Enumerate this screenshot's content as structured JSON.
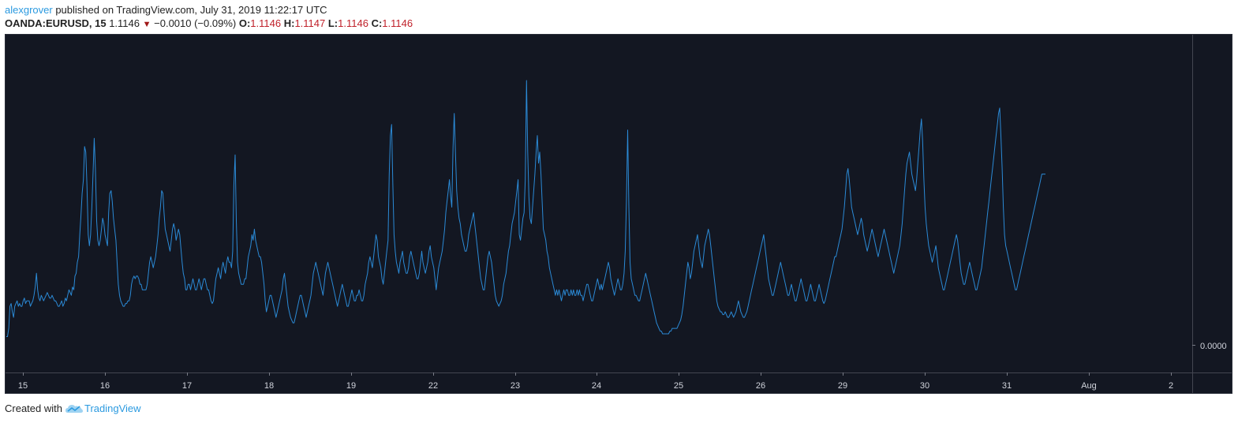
{
  "header": {
    "author": "alexgrover",
    "published_text": "published on TradingView.com, July 31, 2019 11:22:17 UTC",
    "symbol": "OANDA:EURUSD, 15",
    "last_price": "1.1146",
    "change": "−0.0010 (−0.09%)",
    "o_label": "O:",
    "o_value": "1.1146",
    "h_label": "H:",
    "h_value": "1.1147",
    "l_label": "L:",
    "l_value": "1.1146",
    "c_label": "C:",
    "c_value": "1.1146",
    "down_arrow_icon": "triangle-down-icon"
  },
  "footer": {
    "created_with": "Created with",
    "brand": "TradingView",
    "logo_icon": "tradingview-cloud-icon"
  },
  "colors": {
    "background": "#131722",
    "line": "#2b8ad6",
    "author": "#2b9ae0",
    "ohlc_value": "#c0212a"
  },
  "chart_data": {
    "type": "line",
    "price_scale_label": "0.0000",
    "x_ticks": [
      "15",
      "16",
      "17",
      "18",
      "19",
      "22",
      "23",
      "24",
      "25",
      "26",
      "29",
      "30",
      "31",
      "Aug",
      "2"
    ],
    "ylim": [
      0,
      100
    ],
    "series": [
      {
        "values": [
          3,
          3,
          6,
          14,
          15,
          12,
          10,
          14,
          15,
          16,
          14,
          15,
          14,
          14,
          16,
          17,
          15,
          16,
          16,
          16,
          14,
          15,
          16,
          18,
          21,
          26,
          20,
          17,
          16,
          18,
          17,
          16,
          17,
          18,
          19,
          18,
          17,
          17,
          18,
          17,
          16,
          16,
          15,
          14,
          14,
          15,
          16,
          14,
          15,
          17,
          16,
          18,
          20,
          19,
          18,
          21,
          20,
          25,
          26,
          30,
          32,
          40,
          47,
          55,
          60,
          72,
          70,
          58,
          40,
          36,
          40,
          50,
          62,
          75,
          64,
          45,
          38,
          36,
          38,
          42,
          46,
          44,
          40,
          38,
          36,
          48,
          55,
          56,
          52,
          46,
          42,
          38,
          30,
          22,
          18,
          16,
          15,
          14,
          14,
          15,
          15,
          16,
          16,
          18,
          22,
          24,
          25,
          24,
          25,
          25,
          24,
          22,
          22,
          20,
          20,
          20,
          20,
          22,
          26,
          30,
          32,
          30,
          28,
          30,
          32,
          36,
          40,
          46,
          50,
          56,
          55,
          48,
          42,
          40,
          38,
          36,
          34,
          38,
          42,
          44,
          42,
          38,
          40,
          42,
          40,
          35,
          30,
          26,
          24,
          20,
          20,
          22,
          22,
          20,
          22,
          24,
          22,
          20,
          20,
          22,
          24,
          22,
          20,
          22,
          24,
          24,
          22,
          20,
          20,
          18,
          16,
          15,
          16,
          20,
          24,
          26,
          28,
          26,
          24,
          28,
          30,
          28,
          26,
          30,
          32,
          30,
          30,
          28,
          34,
          58,
          69,
          45,
          30,
          26,
          24,
          22,
          22,
          22,
          24,
          24,
          28,
          32,
          34,
          36,
          40,
          38,
          42,
          38,
          36,
          34,
          32,
          32,
          30,
          26,
          22,
          16,
          12,
          14,
          16,
          18,
          18,
          16,
          14,
          12,
          10,
          12,
          14,
          16,
          18,
          20,
          24,
          26,
          22,
          18,
          14,
          12,
          10,
          9,
          8,
          8,
          10,
          12,
          14,
          16,
          18,
          18,
          16,
          14,
          12,
          10,
          12,
          14,
          16,
          18,
          22,
          26,
          28,
          30,
          28,
          26,
          24,
          22,
          20,
          18,
          22,
          26,
          28,
          30,
          28,
          26,
          24,
          22,
          20,
          18,
          16,
          14,
          16,
          18,
          20,
          22,
          20,
          18,
          16,
          14,
          14,
          16,
          18,
          20,
          18,
          16,
          16,
          18,
          18,
          20,
          18,
          16,
          16,
          18,
          22,
          24,
          26,
          30,
          32,
          30,
          28,
          32,
          36,
          40,
          38,
          32,
          30,
          28,
          24,
          22,
          26,
          30,
          34,
          38,
          62,
          76,
          80,
          58,
          40,
          34,
          30,
          28,
          26,
          30,
          32,
          34,
          30,
          28,
          26,
          26,
          28,
          32,
          34,
          32,
          30,
          28,
          26,
          24,
          24,
          26,
          30,
          34,
          30,
          28,
          26,
          28,
          30,
          34,
          36,
          32,
          30,
          28,
          24,
          20,
          24,
          28,
          30,
          32,
          34,
          38,
          42,
          48,
          52,
          56,
          60,
          54,
          50,
          72,
          84,
          70,
          56,
          50,
          46,
          44,
          40,
          38,
          36,
          34,
          34,
          36,
          40,
          42,
          44,
          46,
          48,
          44,
          40,
          36,
          32,
          28,
          24,
          22,
          20,
          20,
          24,
          28,
          32,
          34,
          32,
          30,
          26,
          22,
          18,
          16,
          15,
          14,
          15,
          16,
          18,
          22,
          24,
          26,
          30,
          34,
          36,
          40,
          44,
          46,
          48,
          52,
          56,
          60,
          40,
          38,
          42,
          46,
          48,
          60,
          96,
          70,
          54,
          46,
          44,
          50,
          56,
          62,
          70,
          76,
          66,
          70,
          62,
          52,
          42,
          40,
          38,
          34,
          32,
          28,
          26,
          24,
          22,
          20,
          18,
          20,
          18,
          20,
          18,
          16,
          18,
          20,
          18,
          20,
          20,
          18,
          18,
          20,
          18,
          20,
          18,
          18,
          20,
          18,
          20,
          18,
          18,
          16,
          18,
          20,
          22,
          22,
          20,
          18,
          16,
          16,
          18,
          20,
          22,
          24,
          22,
          20,
          22,
          20,
          22,
          24,
          26,
          28,
          30,
          28,
          24,
          22,
          20,
          18,
          20,
          22,
          24,
          22,
          20,
          20,
          22,
          26,
          34,
          52,
          78,
          50,
          30,
          24,
          22,
          20,
          18,
          18,
          17,
          16,
          16,
          18,
          20,
          22,
          24,
          26,
          24,
          22,
          20,
          18,
          16,
          14,
          12,
          10,
          8,
          7,
          6,
          5,
          5,
          4,
          4,
          4,
          4,
          4,
          4,
          5,
          5,
          6,
          6,
          6,
          6,
          6,
          7,
          8,
          9,
          11,
          14,
          18,
          22,
          26,
          30,
          28,
          24,
          26,
          30,
          34,
          36,
          38,
          40,
          36,
          32,
          30,
          28,
          32,
          36,
          38,
          40,
          42,
          40,
          36,
          32,
          28,
          24,
          20,
          16,
          14,
          13,
          12,
          12,
          11,
          11,
          12,
          11,
          10,
          10,
          11,
          12,
          11,
          10,
          11,
          12,
          14,
          16,
          14,
          12,
          11,
          10,
          10,
          11,
          12,
          14,
          16,
          18,
          20,
          22,
          24,
          26,
          28,
          30,
          32,
          34,
          36,
          38,
          40,
          36,
          32,
          28,
          24,
          22,
          20,
          18,
          18,
          20,
          22,
          24,
          26,
          28,
          30,
          28,
          26,
          24,
          22,
          20,
          18,
          18,
          20,
          22,
          20,
          18,
          16,
          16,
          18,
          20,
          22,
          24,
          22,
          20,
          18,
          16,
          16,
          18,
          20,
          22,
          20,
          18,
          16,
          16,
          18,
          20,
          22,
          20,
          18,
          16,
          15,
          16,
          18,
          20,
          22,
          24,
          26,
          28,
          30,
          32,
          32,
          34,
          36,
          38,
          40,
          42,
          46,
          50,
          56,
          62,
          64,
          60,
          55,
          50,
          48,
          46,
          44,
          42,
          40,
          42,
          44,
          46,
          44,
          40,
          38,
          36,
          34,
          36,
          38,
          40,
          42,
          40,
          38,
          36,
          34,
          32,
          34,
          36,
          38,
          40,
          42,
          40,
          38,
          36,
          34,
          32,
          30,
          28,
          26,
          28,
          30,
          32,
          34,
          36,
          40,
          44,
          50,
          56,
          62,
          66,
          68,
          70,
          66,
          62,
          60,
          58,
          56,
          60,
          66,
          72,
          78,
          82,
          74,
          60,
          50,
          44,
          40,
          36,
          34,
          32,
          30,
          32,
          34,
          36,
          32,
          28,
          26,
          24,
          22,
          20,
          20,
          22,
          24,
          26,
          28,
          30,
          32,
          34,
          36,
          38,
          40,
          38,
          34,
          30,
          26,
          24,
          22,
          22,
          24,
          26,
          28,
          30,
          28,
          26,
          24,
          22,
          20,
          20,
          22,
          24,
          26,
          28,
          32,
          36,
          40,
          44,
          48,
          52,
          56,
          60,
          64,
          68,
          72,
          76,
          80,
          84,
          86,
          76,
          64,
          50,
          40,
          36,
          34,
          32,
          30,
          28,
          26,
          24,
          22,
          20,
          20,
          22,
          24,
          26,
          28,
          30,
          32,
          34,
          36,
          38,
          40,
          42,
          44,
          46,
          48,
          50,
          52,
          54,
          56,
          58,
          60,
          62,
          62,
          62,
          62
        ],
        "note_scale": "relative oscillator amplitude (no printed y-axis values)"
      }
    ]
  }
}
